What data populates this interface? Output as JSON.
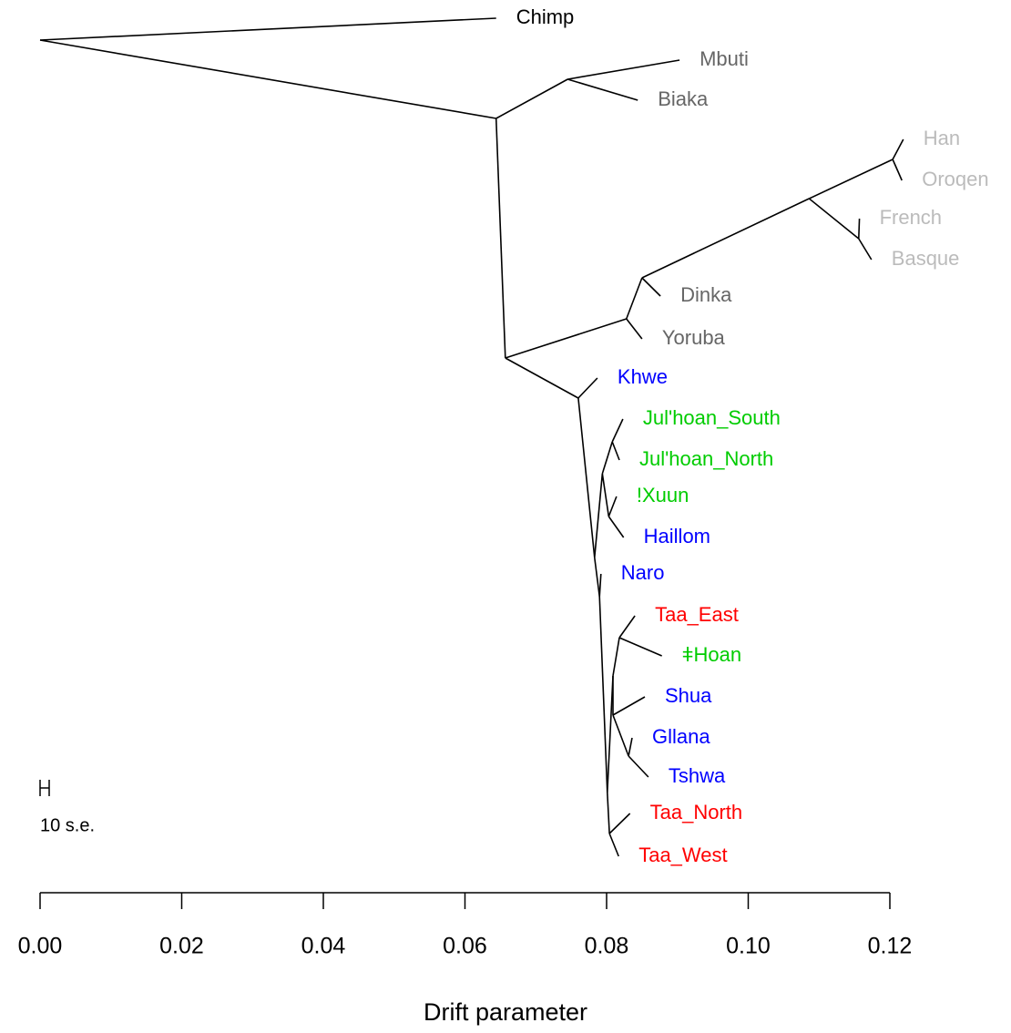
{
  "chart_data": {
    "type": "tree",
    "x_label": "Drift parameter",
    "scale_label": "10 s.e.",
    "xlim": [
      0,
      0.12
    ],
    "xticks": [
      {
        "value": 0,
        "label": "0.00"
      },
      {
        "value": 0.02,
        "label": "0.02"
      },
      {
        "value": 0.04,
        "label": "0.04"
      },
      {
        "value": 0.06,
        "label": "0.06"
      },
      {
        "value": 0.08,
        "label": "0.08"
      },
      {
        "value": 0.1,
        "label": "0.10"
      },
      {
        "value": 0.12,
        "label": "0.12"
      }
    ],
    "tree": {
      "x": 0,
      "children": [
        {
          "x": 0.0644,
          "label": "Chimp",
          "color": "#000000"
        },
        {
          "x": 0.0644,
          "children": [
            {
              "x": 0.0745,
              "children": [
                {
                  "x": 0.0903,
                  "label": "Mbuti",
                  "color": "#666666"
                },
                {
                  "x": 0.0844,
                  "label": "Biaka",
                  "color": "#666666"
                }
              ]
            },
            {
              "x": 0.0657,
              "children": [
                {
                  "x": 0.0828,
                  "children": [
                    {
                      "x": 0.085,
                      "children": [
                        {
                          "x": 0.1086,
                          "children": [
                            {
                              "x": 0.1204,
                              "children": [
                                {
                                  "x": 0.1219,
                                  "label": "Han",
                                  "color": "#bbbbbb"
                                },
                                {
                                  "x": 0.1217,
                                  "label": "Oroqen",
                                  "color": "#bbbbbb"
                                }
                              ]
                            },
                            {
                              "x": 0.1156,
                              "children": [
                                {
                                  "x": 0.1157,
                                  "label": "French",
                                  "color": "#bbbbbb"
                                },
                                {
                                  "x": 0.1174,
                                  "label": "Basque",
                                  "color": "#bbbbbb"
                                }
                              ]
                            }
                          ]
                        },
                        {
                          "x": 0.0876,
                          "label": "Dinka",
                          "color": "#666666"
                        }
                      ]
                    },
                    {
                      "x": 0.085,
                      "label": "Yoruba",
                      "color": "#666666"
                    }
                  ]
                },
                {
                  "x": 0.076,
                  "children": [
                    {
                      "x": 0.0787,
                      "label": "Khwe",
                      "color": "#0000ff"
                    },
                    {
                      "x": 0.0783,
                      "children": [
                        {
                          "x": 0.0794,
                          "children": [
                            {
                              "x": 0.0808,
                              "children": [
                                {
                                  "x": 0.0823,
                                  "label": "Jul'hoan_South",
                                  "color": "#00cc00"
                                },
                                {
                                  "x": 0.0818,
                                  "label": "Jul'hoan_North",
                                  "color": "#00cc00"
                                }
                              ]
                            },
                            {
                              "x": 0.0803,
                              "children": [
                                {
                                  "x": 0.0814,
                                  "label": "!Xuun",
                                  "color": "#00cc00"
                                },
                                {
                                  "x": 0.0824,
                                  "label": "Haillom",
                                  "color": "#0000ff"
                                }
                              ]
                            }
                          ]
                        },
                        {
                          "x": 0.079,
                          "children": [
                            {
                              "x": 0.0792,
                              "label": "Naro",
                              "color": "#0000ff"
                            },
                            {
                              "x": 0.0801,
                              "children": [
                                {
                                  "x": 0.0809,
                                  "children": [
                                    {
                                      "x": 0.0818,
                                      "children": [
                                        {
                                          "x": 0.084,
                                          "label": "Taa_East",
                                          "color": "#ff0000"
                                        },
                                        {
                                          "x": 0.0878,
                                          "label": "ǂHoan",
                                          "color": "#00cc00"
                                        }
                                      ]
                                    },
                                    {
                                      "x": 0.0809,
                                      "children": [
                                        {
                                          "x": 0.0854,
                                          "label": "Shua",
                                          "color": "#0000ff"
                                        },
                                        {
                                          "x": 0.0831,
                                          "children": [
                                            {
                                              "x": 0.0836,
                                              "label": "Gllana",
                                              "color": "#0000ff"
                                            },
                                            {
                                              "x": 0.0859,
                                              "label": "Tshwa",
                                              "color": "#0000ff"
                                            }
                                          ]
                                        }
                                      ]
                                    }
                                  ]
                                },
                                {
                                  "x": 0.0804,
                                  "children": [
                                    {
                                      "x": 0.0833,
                                      "label": "Taa_North",
                                      "color": "#ff0000"
                                    },
                                    {
                                      "x": 0.0817,
                                      "label": "Taa_West",
                                      "color": "#ff0000"
                                    }
                                  ]
                                }
                              ]
                            }
                          ]
                        }
                      ]
                    }
                  ]
                }
              ]
            }
          ]
        }
      ]
    }
  }
}
